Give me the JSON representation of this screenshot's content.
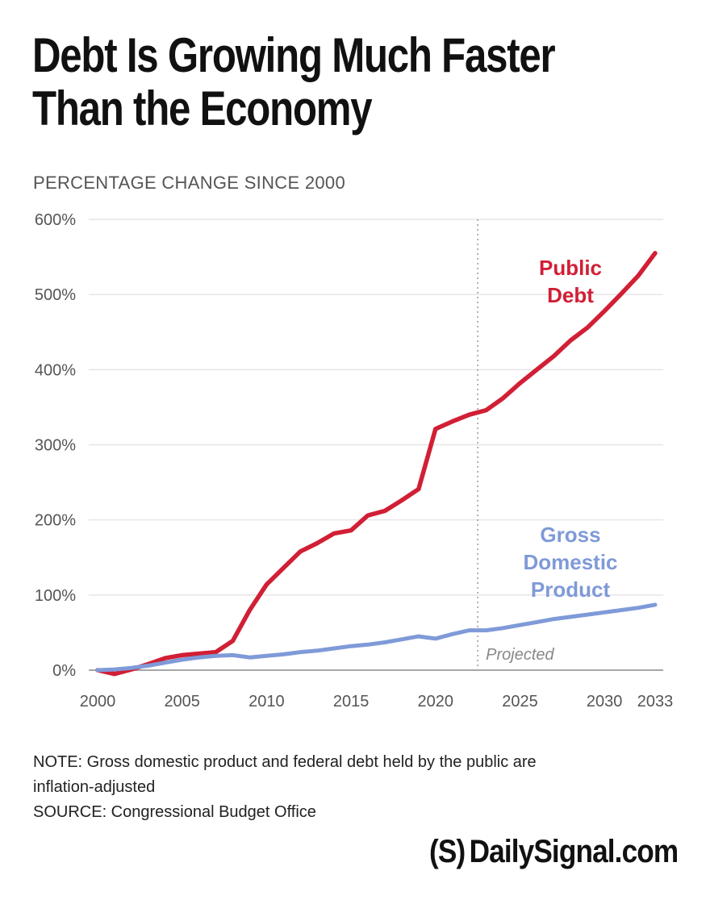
{
  "title": [
    "Debt Is Growing Much Faster",
    "Than the Economy"
  ],
  "subtitle": "PERCENTAGE CHANGE SINCE 2000",
  "note_lines": [
    "NOTE: Gross domestic product and federal debt held by the public are",
    "inflation-adjusted",
    "SOURCE: Congressional Budget Office"
  ],
  "brand": {
    "logo": "(S)",
    "name": "DailySignal.com"
  },
  "colors": {
    "debt": "#d11f35",
    "gdp": "#7f9ad8",
    "grid": "#e6e6e6",
    "axis_text": "#555555",
    "projected_line": "#9a9a9a"
  },
  "chart_data": {
    "type": "line",
    "x_ticks": [
      "2000",
      "2005",
      "2010",
      "2015",
      "2020",
      "2025",
      "2030",
      "2033"
    ],
    "y_ticks": [
      "0%",
      "100%",
      "200%",
      "300%",
      "400%",
      "500%",
      "600%"
    ],
    "ylim": [
      0,
      600
    ],
    "xlim": [
      2000,
      2033
    ],
    "grid": true,
    "projection_start": 2022.5,
    "projection_label": "Projected",
    "series": [
      {
        "name": "Public Debt",
        "label_lines": [
          "Public",
          "Debt"
        ],
        "color": "#d11f35",
        "x": [
          2000,
          2001,
          2002,
          2003,
          2004,
          2005,
          2006,
          2007,
          2008,
          2009,
          2010,
          2011,
          2012,
          2013,
          2014,
          2015,
          2016,
          2017,
          2018,
          2019,
          2020,
          2021,
          2022,
          2023,
          2024,
          2025,
          2026,
          2027,
          2028,
          2029,
          2030,
          2031,
          2032,
          2033
        ],
        "values": [
          0,
          -5,
          1,
          8,
          16,
          20,
          22,
          24,
          39,
          80,
          114,
          136,
          158,
          169,
          182,
          186,
          206,
          212,
          226,
          241,
          321,
          331,
          340,
          346,
          362,
          382,
          400,
          418,
          439,
          456,
          478,
          501,
          525,
          555
        ]
      },
      {
        "name": "Gross Domestic Product",
        "label_lines": [
          "Gross",
          "Domestic",
          "Product"
        ],
        "color": "#7f9ad8",
        "x": [
          2000,
          2001,
          2002,
          2003,
          2004,
          2005,
          2006,
          2007,
          2008,
          2009,
          2010,
          2011,
          2012,
          2013,
          2014,
          2015,
          2016,
          2017,
          2018,
          2019,
          2020,
          2021,
          2022,
          2023,
          2024,
          2025,
          2026,
          2027,
          2028,
          2029,
          2030,
          2031,
          2032,
          2033
        ],
        "values": [
          0,
          1,
          3,
          6,
          10,
          14,
          17,
          19,
          20,
          17,
          19,
          21,
          24,
          26,
          29,
          32,
          34,
          37,
          41,
          45,
          42,
          48,
          53,
          53,
          56,
          60,
          64,
          68,
          71,
          74,
          77,
          80,
          83,
          87
        ]
      }
    ]
  }
}
